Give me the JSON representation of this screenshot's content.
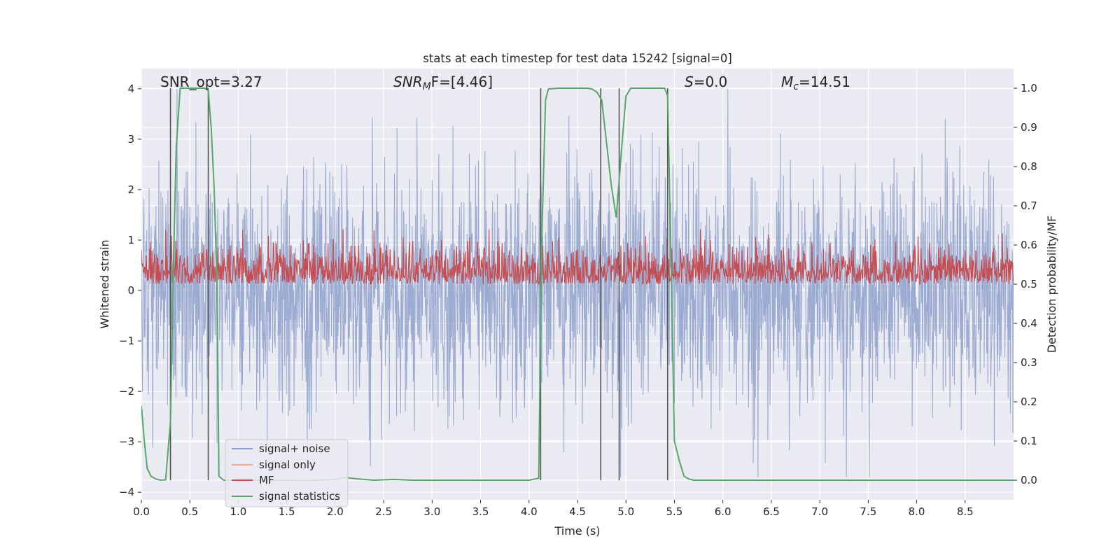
{
  "chart_data": {
    "type": "line",
    "title": "stats at each timestep for test data 15242 [signal=0]",
    "xlabel": "Time (s)",
    "ylabel_left": "Whitened strain",
    "ylabel_right": "Detection probability/MF",
    "xlim": [
      0,
      9.0
    ],
    "ylim_left": [
      -4.15,
      4.4
    ],
    "ylim_right": [
      -0.05,
      1.05
    ],
    "x_ticks": [
      "0.0",
      "0.5",
      "1.0",
      "1.5",
      "2.0",
      "2.5",
      "3.0",
      "3.5",
      "4.0",
      "4.5",
      "5.0",
      "5.5",
      "6.0",
      "6.5",
      "7.0",
      "7.5",
      "8.0",
      "8.5"
    ],
    "y_ticks_left": [
      "4",
      "3",
      "2",
      "1",
      "0",
      "−1",
      "−2",
      "−3",
      "−4"
    ],
    "y_ticks_right": [
      "1.0",
      "0.9",
      "0.8",
      "0.7",
      "0.6",
      "0.5",
      "0.4",
      "0.3",
      "0.2",
      "0.1",
      "0.0"
    ],
    "grid": true,
    "legend_position": "lower-left",
    "annotations": {
      "snr_opt": "SNR_opt=3.27",
      "snr_mf_base": "SNR",
      "snr_mf_sub": "M",
      "snr_mf_rest": "F=[4.46]",
      "s_label": "S",
      "s_rest": "=0.0",
      "mc_base": "M",
      "mc_sub": "c",
      "mc_rest": "=14.51"
    },
    "series": [
      {
        "name": "signal+ noise",
        "axis": "left",
        "color": "#8da0cb",
        "summary": "whitened noise, roughly within -3.7 to 4.0 (peak near t=8.1)"
      },
      {
        "name": "signal only",
        "axis": "left",
        "color": "#f4a582",
        "values": []
      },
      {
        "name": "MF",
        "axis": "right",
        "color": "#c44e52",
        "summary": "matched-filter output fluctuating between about 0.50 and 0.64"
      },
      {
        "name": "signal statistics",
        "axis": "right",
        "color": "#55a868",
        "x": [
          0.0,
          0.03,
          0.06,
          0.1,
          0.15,
          0.2,
          0.25,
          0.3,
          0.33,
          0.36,
          0.4,
          0.45,
          0.5,
          0.55,
          0.6,
          0.65,
          0.69,
          0.72,
          0.75,
          0.78,
          0.8,
          0.85,
          0.9,
          1.0,
          1.2,
          1.5,
          1.8,
          2.0,
          2.1,
          2.2,
          2.4,
          2.6,
          2.8,
          3.0,
          3.5,
          4.0,
          4.1,
          4.13,
          4.17,
          4.2,
          4.3,
          4.5,
          4.6,
          4.65,
          4.7,
          4.75,
          4.8,
          4.85,
          4.9,
          4.95,
          5.0,
          5.05,
          5.1,
          5.2,
          5.3,
          5.4,
          5.43,
          5.47,
          5.5,
          5.55,
          5.6,
          5.65,
          5.7,
          6.0,
          7.0,
          8.0,
          9.0
        ],
        "y": [
          0.19,
          0.1,
          0.03,
          0.01,
          0.003,
          0.0,
          0.001,
          0.15,
          0.55,
          0.85,
          1.0,
          1.0,
          1.0,
          1.0,
          1.0,
          1.0,
          0.995,
          0.9,
          0.75,
          0.5,
          0.01,
          0.0,
          0.0,
          0.0,
          0.0,
          0.0,
          0.0,
          0.002,
          0.007,
          0.004,
          0.0,
          0.002,
          0.0,
          0.0,
          0.0,
          0.0,
          0.005,
          0.6,
          0.97,
          0.998,
          1.0,
          1.0,
          1.0,
          0.998,
          0.99,
          0.97,
          0.86,
          0.75,
          0.67,
          0.83,
          0.98,
          1.0,
          1.0,
          1.0,
          1.0,
          1.0,
          0.98,
          0.5,
          0.1,
          0.05,
          0.01,
          0.003,
          0.0,
          0.0,
          0.0,
          0.0,
          0.0
        ]
      }
    ],
    "vertical_lines_x": [
      0.3,
      0.69,
      4.12,
      4.74,
      4.93,
      5.43
    ]
  }
}
